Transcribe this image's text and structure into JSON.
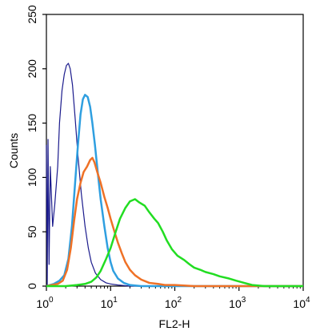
{
  "chart_data": {
    "type": "line",
    "xlabel": "FL2-H",
    "ylabel": "Counts",
    "xscale": "log",
    "xlim": [
      1,
      10000
    ],
    "ylim": [
      0,
      250
    ],
    "grid": false,
    "legend": "none",
    "x_ticks": [
      {
        "value": 1,
        "base": "10",
        "exp": "0"
      },
      {
        "value": 10,
        "base": "10",
        "exp": "1"
      },
      {
        "value": 100,
        "base": "10",
        "exp": "2"
      },
      {
        "value": 1000,
        "base": "10",
        "exp": "3"
      },
      {
        "value": 10000,
        "base": "10",
        "exp": "4"
      }
    ],
    "y_ticks": [
      {
        "value": 0,
        "label": "0"
      },
      {
        "value": 50,
        "label": "50"
      },
      {
        "value": 100,
        "label": "100"
      },
      {
        "value": 150,
        "label": "150"
      },
      {
        "value": 200,
        "label": "200"
      },
      {
        "value": 250,
        "label": "250"
      }
    ],
    "series": [
      {
        "color": "#1a1a8c",
        "stroke_width": 1.2,
        "points": [
          [
            1.0,
            130
          ],
          [
            1.03,
            0
          ],
          [
            1.06,
            135
          ],
          [
            1.1,
            20
          ],
          [
            1.15,
            110
          ],
          [
            1.25,
            55
          ],
          [
            1.35,
            75
          ],
          [
            1.5,
            110
          ],
          [
            1.6,
            150
          ],
          [
            1.75,
            180
          ],
          [
            1.9,
            195
          ],
          [
            2.05,
            203
          ],
          [
            2.2,
            205
          ],
          [
            2.35,
            200
          ],
          [
            2.55,
            185
          ],
          [
            2.8,
            155
          ],
          [
            3.1,
            120
          ],
          [
            3.5,
            85
          ],
          [
            4.0,
            55
          ],
          [
            4.5,
            35
          ],
          [
            5.0,
            22
          ],
          [
            5.8,
            12
          ],
          [
            7.0,
            6
          ],
          [
            8.5,
            3
          ],
          [
            10,
            2
          ],
          [
            13,
            1
          ],
          [
            20,
            0
          ],
          [
            100,
            0
          ],
          [
            10000,
            0
          ]
        ]
      },
      {
        "color": "#2f9fe0",
        "stroke_width": 2.5,
        "points": [
          [
            1.0,
            0
          ],
          [
            1.3,
            2
          ],
          [
            1.6,
            5
          ],
          [
            1.9,
            10
          ],
          [
            2.2,
            25
          ],
          [
            2.5,
            55
          ],
          [
            2.8,
            95
          ],
          [
            3.1,
            130
          ],
          [
            3.4,
            158
          ],
          [
            3.7,
            172
          ],
          [
            4.0,
            176
          ],
          [
            4.4,
            174
          ],
          [
            4.8,
            165
          ],
          [
            5.2,
            150
          ],
          [
            5.7,
            130
          ],
          [
            6.3,
            105
          ],
          [
            7.0,
            80
          ],
          [
            8.0,
            55
          ],
          [
            9.0,
            35
          ],
          [
            10,
            22
          ],
          [
            11,
            14
          ],
          [
            13,
            7
          ],
          [
            16,
            3
          ],
          [
            20,
            1
          ],
          [
            30,
            0
          ],
          [
            10000,
            0
          ]
        ]
      },
      {
        "color": "#ef7126",
        "stroke_width": 2.5,
        "points": [
          [
            1.0,
            0
          ],
          [
            1.5,
            2
          ],
          [
            1.8,
            5
          ],
          [
            2.1,
            15
          ],
          [
            2.4,
            35
          ],
          [
            2.7,
            60
          ],
          [
            3.0,
            80
          ],
          [
            3.4,
            95
          ],
          [
            3.8,
            105
          ],
          [
            4.3,
            110
          ],
          [
            4.8,
            116
          ],
          [
            5.2,
            118
          ],
          [
            5.6,
            114
          ],
          [
            6.2,
            105
          ],
          [
            7.0,
            95
          ],
          [
            8.0,
            82
          ],
          [
            9.0,
            72
          ],
          [
            10,
            62
          ],
          [
            11.5,
            50
          ],
          [
            13,
            40
          ],
          [
            15,
            30
          ],
          [
            17,
            22
          ],
          [
            20,
            15
          ],
          [
            24,
            10
          ],
          [
            30,
            6
          ],
          [
            40,
            3
          ],
          [
            55,
            2
          ],
          [
            70,
            1
          ],
          [
            100,
            1
          ],
          [
            200,
            0
          ],
          [
            10000,
            0
          ]
        ]
      },
      {
        "color": "#22dd22",
        "stroke_width": 2.5,
        "points": [
          [
            1.0,
            0
          ],
          [
            2,
            0
          ],
          [
            3,
            1
          ],
          [
            4,
            2
          ],
          [
            5,
            4
          ],
          [
            6,
            8
          ],
          [
            7,
            14
          ],
          [
            8.5,
            25
          ],
          [
            10,
            35
          ],
          [
            12,
            50
          ],
          [
            14,
            62
          ],
          [
            17,
            72
          ],
          [
            20,
            78
          ],
          [
            24,
            80
          ],
          [
            28,
            77
          ],
          [
            34,
            74
          ],
          [
            40,
            68
          ],
          [
            48,
            62
          ],
          [
            55,
            58
          ],
          [
            65,
            50
          ],
          [
            75,
            42
          ],
          [
            90,
            34
          ],
          [
            110,
            28
          ],
          [
            140,
            24
          ],
          [
            170,
            20
          ],
          [
            200,
            17
          ],
          [
            250,
            15
          ],
          [
            300,
            13
          ],
          [
            400,
            11
          ],
          [
            500,
            9
          ],
          [
            700,
            7
          ],
          [
            900,
            5
          ],
          [
            1200,
            3
          ],
          [
            1600,
            1
          ],
          [
            2500,
            0
          ],
          [
            10000,
            0
          ]
        ]
      }
    ]
  }
}
